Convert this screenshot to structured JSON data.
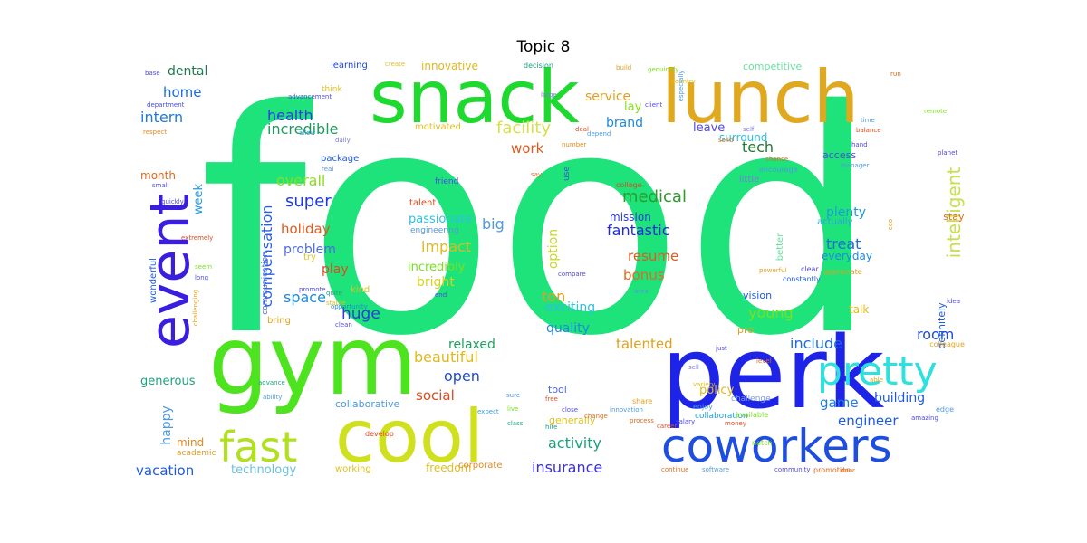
{
  "title": "Topic 8",
  "words": [
    {
      "text": "food",
      "color": "#1de37a"
    },
    {
      "text": "perk",
      "color": "#1e23e8"
    },
    {
      "text": "gym",
      "color": "#4de31e"
    },
    {
      "text": "snack",
      "color": "#1ed92e"
    },
    {
      "text": "lunch",
      "color": "#e0a81e"
    },
    {
      "text": "cool",
      "color": "#cfe01e"
    },
    {
      "text": "coworkers",
      "color": "#1e4ee0"
    },
    {
      "text": "event",
      "color": "#3a1ee0"
    },
    {
      "text": "pretty",
      "color": "#2ee0de"
    },
    {
      "text": "fast",
      "color": "#b0e01e"
    },
    {
      "text": "intelligent",
      "color": "#c7e04a"
    },
    {
      "text": "facility",
      "color": "#d6e04a"
    },
    {
      "text": "compensation",
      "color": "#2a5ee0"
    },
    {
      "text": "incredible",
      "color": "#1e9a5e"
    },
    {
      "text": "health",
      "color": "#2e3ae0"
    },
    {
      "text": "intern",
      "color": "#1e7ae0"
    },
    {
      "text": "home",
      "color": "#1e6ae0"
    },
    {
      "text": "dental",
      "color": "#1e7a4e"
    },
    {
      "text": "work",
      "color": "#e05a1e"
    },
    {
      "text": "tech",
      "color": "#1e7a2e"
    },
    {
      "text": "overall",
      "color": "#8ae01e"
    },
    {
      "text": "super",
      "color": "#1e3ae0"
    },
    {
      "text": "week",
      "color": "#1e9ae0"
    },
    {
      "text": "big",
      "color": "#4e9ae0"
    },
    {
      "text": "medical",
      "color": "#2e9a2e"
    },
    {
      "text": "holiday",
      "color": "#e05a1e"
    },
    {
      "text": "passionate",
      "color": "#2ec0e0"
    },
    {
      "text": "fantastic",
      "color": "#1e2ae0"
    },
    {
      "text": "plenty",
      "color": "#1e9ae0"
    },
    {
      "text": "treat",
      "color": "#1e6ae0"
    },
    {
      "text": "option",
      "color": "#c8d81e"
    },
    {
      "text": "impact",
      "color": "#e0b81e"
    },
    {
      "text": "resume",
      "color": "#e05a1e"
    },
    {
      "text": "problem",
      "color": "#4e6ae0"
    },
    {
      "text": "incredibly",
      "color": "#7ae01e"
    },
    {
      "text": "bonus",
      "color": "#e06a1e"
    },
    {
      "text": "space",
      "color": "#1e8ae0"
    },
    {
      "text": "play",
      "color": "#e04a1e"
    },
    {
      "text": "bright",
      "color": "#d8d01e"
    },
    {
      "text": "ton",
      "color": "#e0a01e"
    },
    {
      "text": "huge",
      "color": "#2e3ae0"
    },
    {
      "text": "exciting",
      "color": "#2ec0e0"
    },
    {
      "text": "quality",
      "color": "#1e8ae0"
    },
    {
      "text": "young",
      "color": "#7ae01e"
    },
    {
      "text": "relaxed",
      "color": "#1ea05e"
    },
    {
      "text": "talented",
      "color": "#e0a01e"
    },
    {
      "text": "include",
      "color": "#1e6ae0"
    },
    {
      "text": "room",
      "color": "#1e4ae0"
    },
    {
      "text": "beautiful",
      "color": "#e0b81e"
    },
    {
      "text": "open",
      "color": "#1e4ae0"
    },
    {
      "text": "social",
      "color": "#e04a1e"
    },
    {
      "text": "game",
      "color": "#1e7ae0"
    },
    {
      "text": "building",
      "color": "#1e5ae0"
    },
    {
      "text": "engineer",
      "color": "#1e5ae0"
    },
    {
      "text": "happy",
      "color": "#4e9ae0"
    },
    {
      "text": "generous",
      "color": "#1ea07e"
    },
    {
      "text": "activity",
      "color": "#1ea07e"
    },
    {
      "text": "insurance",
      "color": "#3a2ee0"
    },
    {
      "text": "vacation",
      "color": "#1e5ae0"
    },
    {
      "text": "technology",
      "color": "#6ac0e0"
    },
    {
      "text": "innovative",
      "color": "#e0b81e"
    },
    {
      "text": "competitive",
      "color": "#6ae0a0"
    },
    {
      "text": "service",
      "color": "#e0a01e"
    },
    {
      "text": "brand",
      "color": "#1e8ae0"
    },
    {
      "text": "lay",
      "color": "#8ae01e"
    },
    {
      "text": "leave",
      "color": "#4e4ae0"
    },
    {
      "text": "surround",
      "color": "#2ec0e0"
    },
    {
      "text": "month",
      "color": "#e06a1e"
    },
    {
      "text": "mission",
      "color": "#2e3ae0"
    },
    {
      "text": "policy",
      "color": "#e0b81e"
    },
    {
      "text": "talk",
      "color": "#e0b81e"
    },
    {
      "text": "vision",
      "color": "#1e5ae0"
    },
    {
      "text": "definitely",
      "color": "#1e5ae0"
    },
    {
      "text": "everyday",
      "color": "#1e8ae0"
    },
    {
      "text": "stay",
      "color": "#e06a1e"
    },
    {
      "text": "mind",
      "color": "#e08a1e"
    },
    {
      "text": "freedom",
      "color": "#e0c01e"
    },
    {
      "text": "collaborative",
      "color": "#4e9ae0"
    },
    {
      "text": "tool",
      "color": "#4e6ae0"
    },
    {
      "text": "learning",
      "color": "#1e4ae0"
    },
    {
      "text": "motivated",
      "color": "#e0c01e"
    },
    {
      "text": "package",
      "color": "#1e5ae0"
    },
    {
      "text": "access",
      "color": "#4e4ae0"
    },
    {
      "text": "little",
      "color": "#7a7ae0"
    },
    {
      "text": "actually",
      "color": "#2ea0e0"
    },
    {
      "text": "better",
      "color": "#6ae0a0"
    },
    {
      "text": "pro",
      "color": "#e0a01e"
    },
    {
      "text": "wonderful",
      "color": "#1e5ae0"
    },
    {
      "text": "academic",
      "color": "#e0a01e"
    },
    {
      "text": "communication",
      "color": "#4e6ae0"
    },
    {
      "text": "generally",
      "color": "#e0c01e"
    },
    {
      "text": "corporate",
      "color": "#e08a1e"
    },
    {
      "text": "working",
      "color": "#e0c01e"
    },
    {
      "text": "bring",
      "color": "#e0a01e"
    },
    {
      "text": "try",
      "color": "#e0c01e"
    },
    {
      "text": "kind",
      "color": "#e0c01e"
    },
    {
      "text": "talent",
      "color": "#e04a1e"
    },
    {
      "text": "friend",
      "color": "#4e4ae0"
    },
    {
      "text": "collaboration",
      "color": "#1ea0e0"
    },
    {
      "text": "engineering",
      "color": "#4e9ae0"
    },
    {
      "text": "college",
      "color": "#e04a1e"
    },
    {
      "text": "challenge",
      "color": "#7a9ae0"
    },
    {
      "text": "encourage",
      "color": "#4e9ae0"
    },
    {
      "text": "available",
      "color": "#7ae01e"
    },
    {
      "text": "promotion",
      "color": "#e06a1e"
    },
    {
      "text": "clear",
      "color": "#4e4ae0"
    },
    {
      "text": "appreciate",
      "color": "#e0a01e"
    },
    {
      "text": "constantly",
      "color": "#1e5ae0"
    },
    {
      "text": "enjoy",
      "color": "#4e9ae0"
    },
    {
      "text": "decision",
      "color": "#1ea07e"
    },
    {
      "text": "create",
      "color": "#e0c01e"
    },
    {
      "text": "advancement",
      "color": "#4e4ae0"
    },
    {
      "text": "department",
      "color": "#4e4ae0"
    },
    {
      "text": "genuinely",
      "color": "#7ae01e"
    },
    {
      "text": "country",
      "color": "#e0c01e"
    },
    {
      "text": "respect",
      "color": "#e08a1e"
    },
    {
      "text": "allow",
      "color": "#2ea0e0"
    },
    {
      "text": "quickly",
      "color": "#4e4ae0"
    },
    {
      "text": "small",
      "color": "#4e4ae0"
    },
    {
      "text": "extremely",
      "color": "#e04a1e"
    },
    {
      "text": "challenging",
      "color": "#e0a01e"
    },
    {
      "text": "ability",
      "color": "#4e9ae0"
    },
    {
      "text": "advance",
      "color": "#1ea07e"
    },
    {
      "text": "edge",
      "color": "#4e9ae0"
    },
    {
      "text": "notch",
      "color": "#7ae01e"
    },
    {
      "text": "colleague",
      "color": "#e0a01e"
    },
    {
      "text": "amazing",
      "color": "#4e4ae0"
    },
    {
      "text": "develop",
      "color": "#e04a1e"
    },
    {
      "text": "share",
      "color": "#e0a01e"
    },
    {
      "text": "expect",
      "color": "#2ea0e0"
    },
    {
      "text": "number",
      "color": "#e08a1e"
    },
    {
      "text": "depend",
      "color": "#4e9ae0"
    },
    {
      "text": "chance",
      "color": "#e06a1e"
    },
    {
      "text": "stable",
      "color": "#e0c01e"
    },
    {
      "text": "quite",
      "color": "#1ea07e"
    },
    {
      "text": "promote",
      "color": "#4e4ae0"
    },
    {
      "text": "opportunity",
      "color": "#1e8ae0"
    },
    {
      "text": "real",
      "color": "#4e9ae0"
    },
    {
      "text": "think",
      "color": "#e0c01e"
    },
    {
      "text": "self",
      "color": "#7a7ae0"
    },
    {
      "text": "solid",
      "color": "#e06a1e"
    },
    {
      "text": "clean",
      "color": "#4e4ae0"
    },
    {
      "text": "deal",
      "color": "#e04a1e"
    },
    {
      "text": "build",
      "color": "#e0a01e"
    },
    {
      "text": "client",
      "color": "#4e4ae0"
    },
    {
      "text": "especially",
      "color": "#4e9ae0"
    },
    {
      "text": "large",
      "color": "#7a7ae0"
    },
    {
      "text": "run",
      "color": "#e06a1e"
    },
    {
      "text": "balance",
      "color": "#e04a1e"
    },
    {
      "text": "hand",
      "color": "#4e4ae0"
    },
    {
      "text": "manager",
      "color": "#4e9ae0"
    },
    {
      "text": "base",
      "color": "#4e4ae0"
    },
    {
      "text": "daily",
      "color": "#7a7ae0"
    },
    {
      "text": "use",
      "color": "#4e4ae0"
    },
    {
      "text": "say",
      "color": "#e06a1e"
    },
    {
      "text": "live",
      "color": "#7ae01e"
    },
    {
      "text": "class",
      "color": "#1ea07e"
    },
    {
      "text": "free",
      "color": "#e04a1e"
    },
    {
      "text": "sure",
      "color": "#4e9ae0"
    },
    {
      "text": "just",
      "color": "#4e4ae0"
    },
    {
      "text": "variety",
      "color": "#e0c01e"
    },
    {
      "text": "continue",
      "color": "#e06a1e"
    },
    {
      "text": "software",
      "color": "#4e9ae0"
    },
    {
      "text": "community",
      "color": "#4e4ae0"
    },
    {
      "text": "door",
      "color": "#e06a1e"
    },
    {
      "text": "long",
      "color": "#4e4ae0"
    },
    {
      "text": "able",
      "color": "#e0a01e"
    },
    {
      "text": "idea",
      "color": "#4e4ae0"
    },
    {
      "text": "ceo",
      "color": "#e0a01e"
    },
    {
      "text": "area",
      "color": "#4e9ae0"
    },
    {
      "text": "end",
      "color": "#4e4ae0"
    },
    {
      "text": "process",
      "color": "#e06a1e"
    },
    {
      "text": "career",
      "color": "#e04a1e"
    },
    {
      "text": "salary",
      "color": "#4e4ae0"
    },
    {
      "text": "seem",
      "color": "#7ae01e"
    },
    {
      "text": "money",
      "color": "#e04a1e"
    },
    {
      "text": "close",
      "color": "#4e4ae0"
    },
    {
      "text": "change",
      "color": "#e06a1e"
    },
    {
      "text": "sell",
      "color": "#7a7ae0"
    },
    {
      "text": "innovation",
      "color": "#4e9ae0"
    },
    {
      "text": "powerful",
      "color": "#e0a01e"
    },
    {
      "text": "compare",
      "color": "#4e4ae0"
    },
    {
      "text": "level",
      "color": "#e06a1e"
    },
    {
      "text": "hire",
      "color": "#1ea07e"
    },
    {
      "text": "remote",
      "color": "#7ae01e"
    },
    {
      "text": "time",
      "color": "#4e9ae0"
    },
    {
      "text": "planet",
      "color": "#4e4ae0"
    }
  ]
}
